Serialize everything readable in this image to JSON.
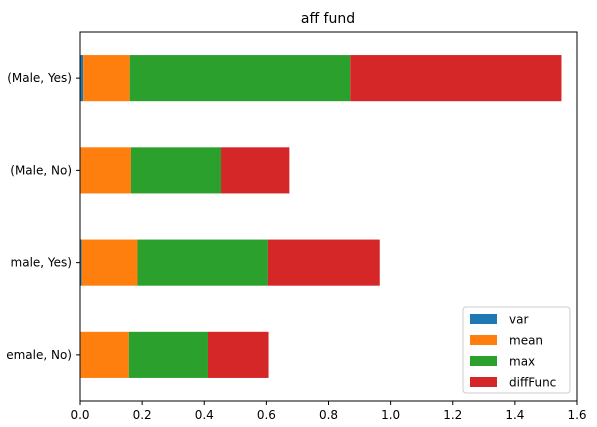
{
  "chart_data": {
    "type": "bar",
    "orientation": "horizontal",
    "stacked": true,
    "title": "aff fund",
    "xlabel": "",
    "ylabel": "",
    "xlim": [
      0,
      1.6
    ],
    "x_ticks": [
      "0.0",
      "0.2",
      "0.4",
      "0.6",
      "0.8",
      "1.0",
      "1.2",
      "1.4",
      "1.6"
    ],
    "categories": [
      "(Female, No)",
      "(Female, Yes)",
      "(Male, No)",
      "(Male, Yes)"
    ],
    "category_labels_visible": [
      "emale, No)",
      "male, Yes)",
      "(Male, No)",
      "(Male, Yes)"
    ],
    "series": [
      {
        "name": "var",
        "color": "#1f77b4",
        "values": [
          0.002,
          0.005,
          0.002,
          0.01
        ]
      },
      {
        "name": "mean",
        "color": "#ff7f0e",
        "values": [
          0.155,
          0.18,
          0.162,
          0.15
        ]
      },
      {
        "name": "max",
        "color": "#2ca02c",
        "values": [
          0.255,
          0.42,
          0.29,
          0.71
        ]
      },
      {
        "name": "diffFunc",
        "color": "#d62728",
        "values": [
          0.195,
          0.36,
          0.22,
          0.68
        ]
      }
    ],
    "grid": false,
    "legend_position": "lower right"
  }
}
